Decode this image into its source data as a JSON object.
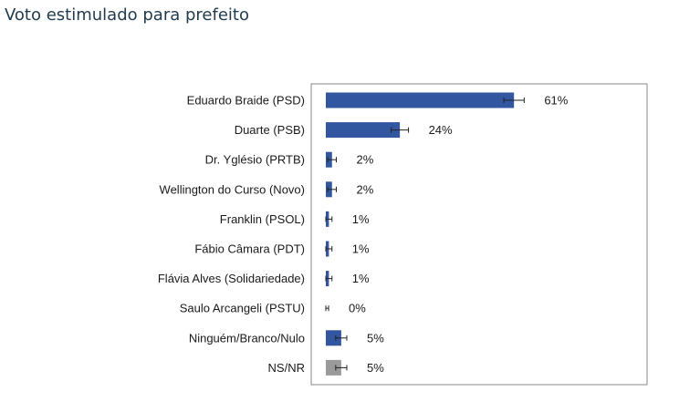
{
  "title": "Voto estimulado para prefeito",
  "colors": {
    "candidate_bar": "#3256a0",
    "undecided_bar": "#9a9a9a",
    "title_text": "#1f3b4d",
    "error_bar": "#222222",
    "frame": "#888888"
  },
  "chart_data": {
    "type": "bar",
    "orientation": "horizontal",
    "title": "Voto estimulado para prefeito",
    "xlabel": "",
    "ylabel": "",
    "grid": false,
    "legend": "none",
    "xlim": [
      0,
      76
    ],
    "value_suffix": "%",
    "categories": [
      "Eduardo Braide (PSD)",
      "Duarte (PSB)",
      "Dr. Yglésio (PRTB)",
      "Wellington do Curso (Novo)",
      "Franklin (PSOL)",
      "Fábio Câmara (PDT)",
      "Flávia Alves (Solidariedade)",
      "Saulo Arcangeli (PSTU)",
      "Ninguém/Branco/Nulo",
      "NS/NR"
    ],
    "values": [
      61,
      24,
      2,
      2,
      1,
      1,
      1,
      0,
      5,
      5
    ],
    "labels": [
      "61%",
      "24%",
      "2%",
      "2%",
      "1%",
      "1%",
      "1%",
      "0%",
      "5%",
      "5%"
    ],
    "error": [
      3.3,
      2.8,
      1.4,
      1.4,
      1.0,
      1.0,
      1.0,
      0.9,
      1.8,
      1.8
    ],
    "bar_colors": [
      "#3256a0",
      "#3256a0",
      "#3256a0",
      "#3256a0",
      "#3256a0",
      "#3256a0",
      "#3256a0",
      "#3256a0",
      "#3256a0",
      "#9a9a9a"
    ]
  }
}
